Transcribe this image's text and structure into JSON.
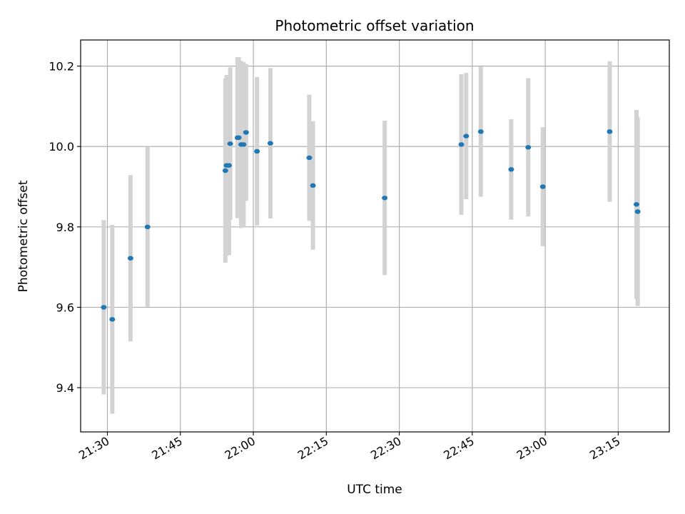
{
  "chart_data": {
    "type": "scatter",
    "title": "Photometric offset variation",
    "xlabel": "UTC time",
    "ylabel": "Photometric offset",
    "grid": true,
    "xlim": [
      "21:24:30",
      "23:25:30"
    ],
    "ylim": [
      9.29,
      10.265
    ],
    "x_ticks": [
      "21:30",
      "21:45",
      "22:00",
      "22:15",
      "22:30",
      "22:45",
      "23:00",
      "23:15"
    ],
    "y_ticks": [
      9.4,
      9.6,
      9.8,
      10.0,
      10.2
    ],
    "y_tick_labels": [
      "9.4",
      "9.6",
      "9.8",
      "10.0",
      "10.2"
    ],
    "colors": {
      "marker": "#1f77b4",
      "error_bar": "#d3d3d3"
    },
    "series": [
      {
        "points": [
          {
            "t": "21:29:15",
            "y": 9.6,
            "err": 0.217
          },
          {
            "t": "21:31:00",
            "y": 9.57,
            "err": 0.235
          },
          {
            "t": "21:34:45",
            "y": 9.722,
            "err": 0.207
          },
          {
            "t": "21:38:15",
            "y": 9.8,
            "err": 0.199
          },
          {
            "t": "21:54:15",
            "y": 9.94,
            "err": 0.229
          },
          {
            "t": "21:54:30",
            "y": 9.953,
            "err": 0.225
          },
          {
            "t": "21:55:00",
            "y": 9.953,
            "err": 0.223
          },
          {
            "t": "21:55:15",
            "y": 10.007,
            "err": 0.19
          },
          {
            "t": "21:56:45",
            "y": 10.022,
            "err": 0.2
          },
          {
            "t": "21:57:00",
            "y": 10.022,
            "err": 0.2
          },
          {
            "t": "21:57:30",
            "y": 10.005,
            "err": 0.208
          },
          {
            "t": "21:58:00",
            "y": 10.005,
            "err": 0.205
          },
          {
            "t": "21:58:30",
            "y": 10.035,
            "err": 0.17
          },
          {
            "t": "22:00:45",
            "y": 9.988,
            "err": 0.185
          },
          {
            "t": "22:03:30",
            "y": 10.008,
            "err": 0.187
          },
          {
            "t": "22:11:30",
            "y": 9.972,
            "err": 0.157
          },
          {
            "t": "22:12:15",
            "y": 9.903,
            "err": 0.16
          },
          {
            "t": "22:27:00",
            "y": 9.872,
            "err": 0.192
          },
          {
            "t": "22:42:45",
            "y": 10.005,
            "err": 0.175
          },
          {
            "t": "22:43:45",
            "y": 10.026,
            "err": 0.157
          },
          {
            "t": "22:46:45",
            "y": 10.037,
            "err": 0.162
          },
          {
            "t": "22:53:00",
            "y": 9.943,
            "err": 0.125
          },
          {
            "t": "22:56:30",
            "y": 9.998,
            "err": 0.172
          },
          {
            "t": "22:59:30",
            "y": 9.9,
            "err": 0.148
          },
          {
            "t": "23:13:15",
            "y": 10.037,
            "err": 0.175
          },
          {
            "t": "23:18:45",
            "y": 9.856,
            "err": 0.235
          },
          {
            "t": "23:19:00",
            "y": 9.838,
            "err": 0.235
          }
        ]
      }
    ]
  }
}
